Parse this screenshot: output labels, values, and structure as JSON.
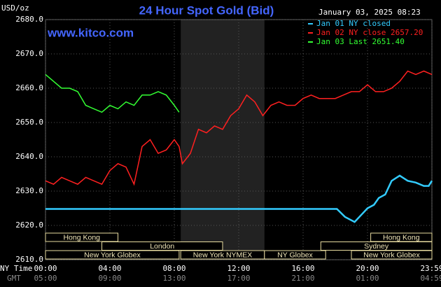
{
  "chart_data": {
    "type": "line",
    "title": "24 Hour Spot Gold (Bid)",
    "date": "January 03, 2025 08:23",
    "watermark": "www.kitco.com",
    "y_label": "USD/oz",
    "x_label": "NY Time",
    "x2_label": "GMT",
    "xlim": [
      0,
      24
    ],
    "ylim": [
      2610,
      2680
    ],
    "yticks": [
      {
        "value": 2610,
        "label": "2610.0"
      },
      {
        "value": 2620,
        "label": "2620.0"
      },
      {
        "value": 2630,
        "label": "2630.0"
      },
      {
        "value": 2640,
        "label": "2640.0"
      },
      {
        "value": 2650,
        "label": "2650.0"
      },
      {
        "value": 2660,
        "label": "2660.0"
      },
      {
        "value": 2670,
        "label": "2670.0"
      },
      {
        "value": 2680,
        "label": "2680.0"
      }
    ],
    "xticks": [
      {
        "value": 0,
        "label": "00:00"
      },
      {
        "value": 4,
        "label": "04:00"
      },
      {
        "value": 8,
        "label": "08:00"
      },
      {
        "value": 12,
        "label": "12:00"
      },
      {
        "value": 16,
        "label": "16:00"
      },
      {
        "value": 20,
        "label": "20:00"
      },
      {
        "value": 24,
        "label": "23:59"
      }
    ],
    "x2tick_labels": [
      "05:00",
      "09:00",
      "13:00",
      "17:00",
      "21:00",
      "01:00",
      "04:59"
    ],
    "grid": true,
    "shaded": [
      8.4,
      13.6
    ],
    "sessions": [
      {
        "label": "Hong Kong",
        "start": 0,
        "end": 4.5,
        "row": 1
      },
      {
        "label": "London",
        "start": 3.5,
        "end": 11,
        "row": 2
      },
      {
        "label": "New York Globex",
        "start": 0,
        "end": 8.3,
        "row": 3
      },
      {
        "label": "New York NYMEX",
        "start": 8.4,
        "end": 13.6,
        "row": 3
      },
      {
        "label": "NY Globex",
        "start": 13.6,
        "end": 17.4,
        "row": 3
      },
      {
        "label": "Sydney",
        "start": 17.1,
        "end": 24,
        "row": 2
      },
      {
        "label": "New York Globex",
        "start": 19,
        "end": 24,
        "row": 3
      },
      {
        "label": "Hong Kong",
        "start": 20.2,
        "end": 24,
        "row": 1
      }
    ],
    "series": [
      {
        "name": "Jan 01 NY closed",
        "color": "#33ccff",
        "x": [
          0,
          18.1,
          18.6,
          19.2,
          19.6,
          20,
          20.4,
          20.7,
          21.1,
          21.5,
          22,
          22.5,
          23,
          23.5,
          23.8,
          24
        ],
        "values": [
          2624.8,
          2624.8,
          2622.5,
          2621,
          2623,
          2625,
          2626,
          2628,
          2629,
          2633,
          2634.5,
          2633,
          2632.5,
          2631.5,
          2631.5,
          2633
        ]
      },
      {
        "name": "Jan 02 NY close 2657.20",
        "color": "#ff2020",
        "x": [
          0,
          0.5,
          1,
          1.5,
          2,
          2.5,
          3,
          3.5,
          4,
          4.5,
          5,
          5.5,
          6,
          6.5,
          7,
          7.5,
          8,
          8.3,
          8.5,
          9,
          9.5,
          10,
          10.5,
          11,
          11.5,
          12,
          12.5,
          13,
          13.5,
          14,
          14.5,
          15,
          15.5,
          16,
          16.5,
          17,
          17.5,
          18,
          18.5,
          19,
          19.5,
          20,
          20.5,
          21,
          21.5,
          22,
          22.5,
          23,
          23.5,
          24
        ],
        "values": [
          2633,
          2632,
          2634,
          2633,
          2632,
          2634,
          2633,
          2632,
          2636,
          2638,
          2637,
          2632,
          2643,
          2645,
          2641,
          2642,
          2645,
          2643,
          2638,
          2641,
          2648,
          2647,
          2649,
          2648,
          2652,
          2654,
          2658,
          2656,
          2652,
          2655,
          2656,
          2655,
          2655,
          2657,
          2658,
          2657,
          2657,
          2657,
          2658,
          2659,
          2659,
          2661,
          2659,
          2659,
          2660,
          2662,
          2665,
          2664,
          2665,
          2664
        ]
      },
      {
        "name": "Jan 03 Last 2651.40",
        "color": "#33ff33",
        "x": [
          0,
          0.5,
          1,
          1.5,
          2,
          2.5,
          3,
          3.5,
          4,
          4.5,
          5,
          5.5,
          6,
          6.5,
          7,
          7.5,
          8,
          8.3
        ],
        "values": [
          2664,
          2662,
          2660,
          2660,
          2659,
          2655,
          2654,
          2653,
          2655,
          2654,
          2656,
          2655,
          2658,
          2658,
          2659,
          2658,
          2655,
          2653
        ]
      }
    ]
  }
}
